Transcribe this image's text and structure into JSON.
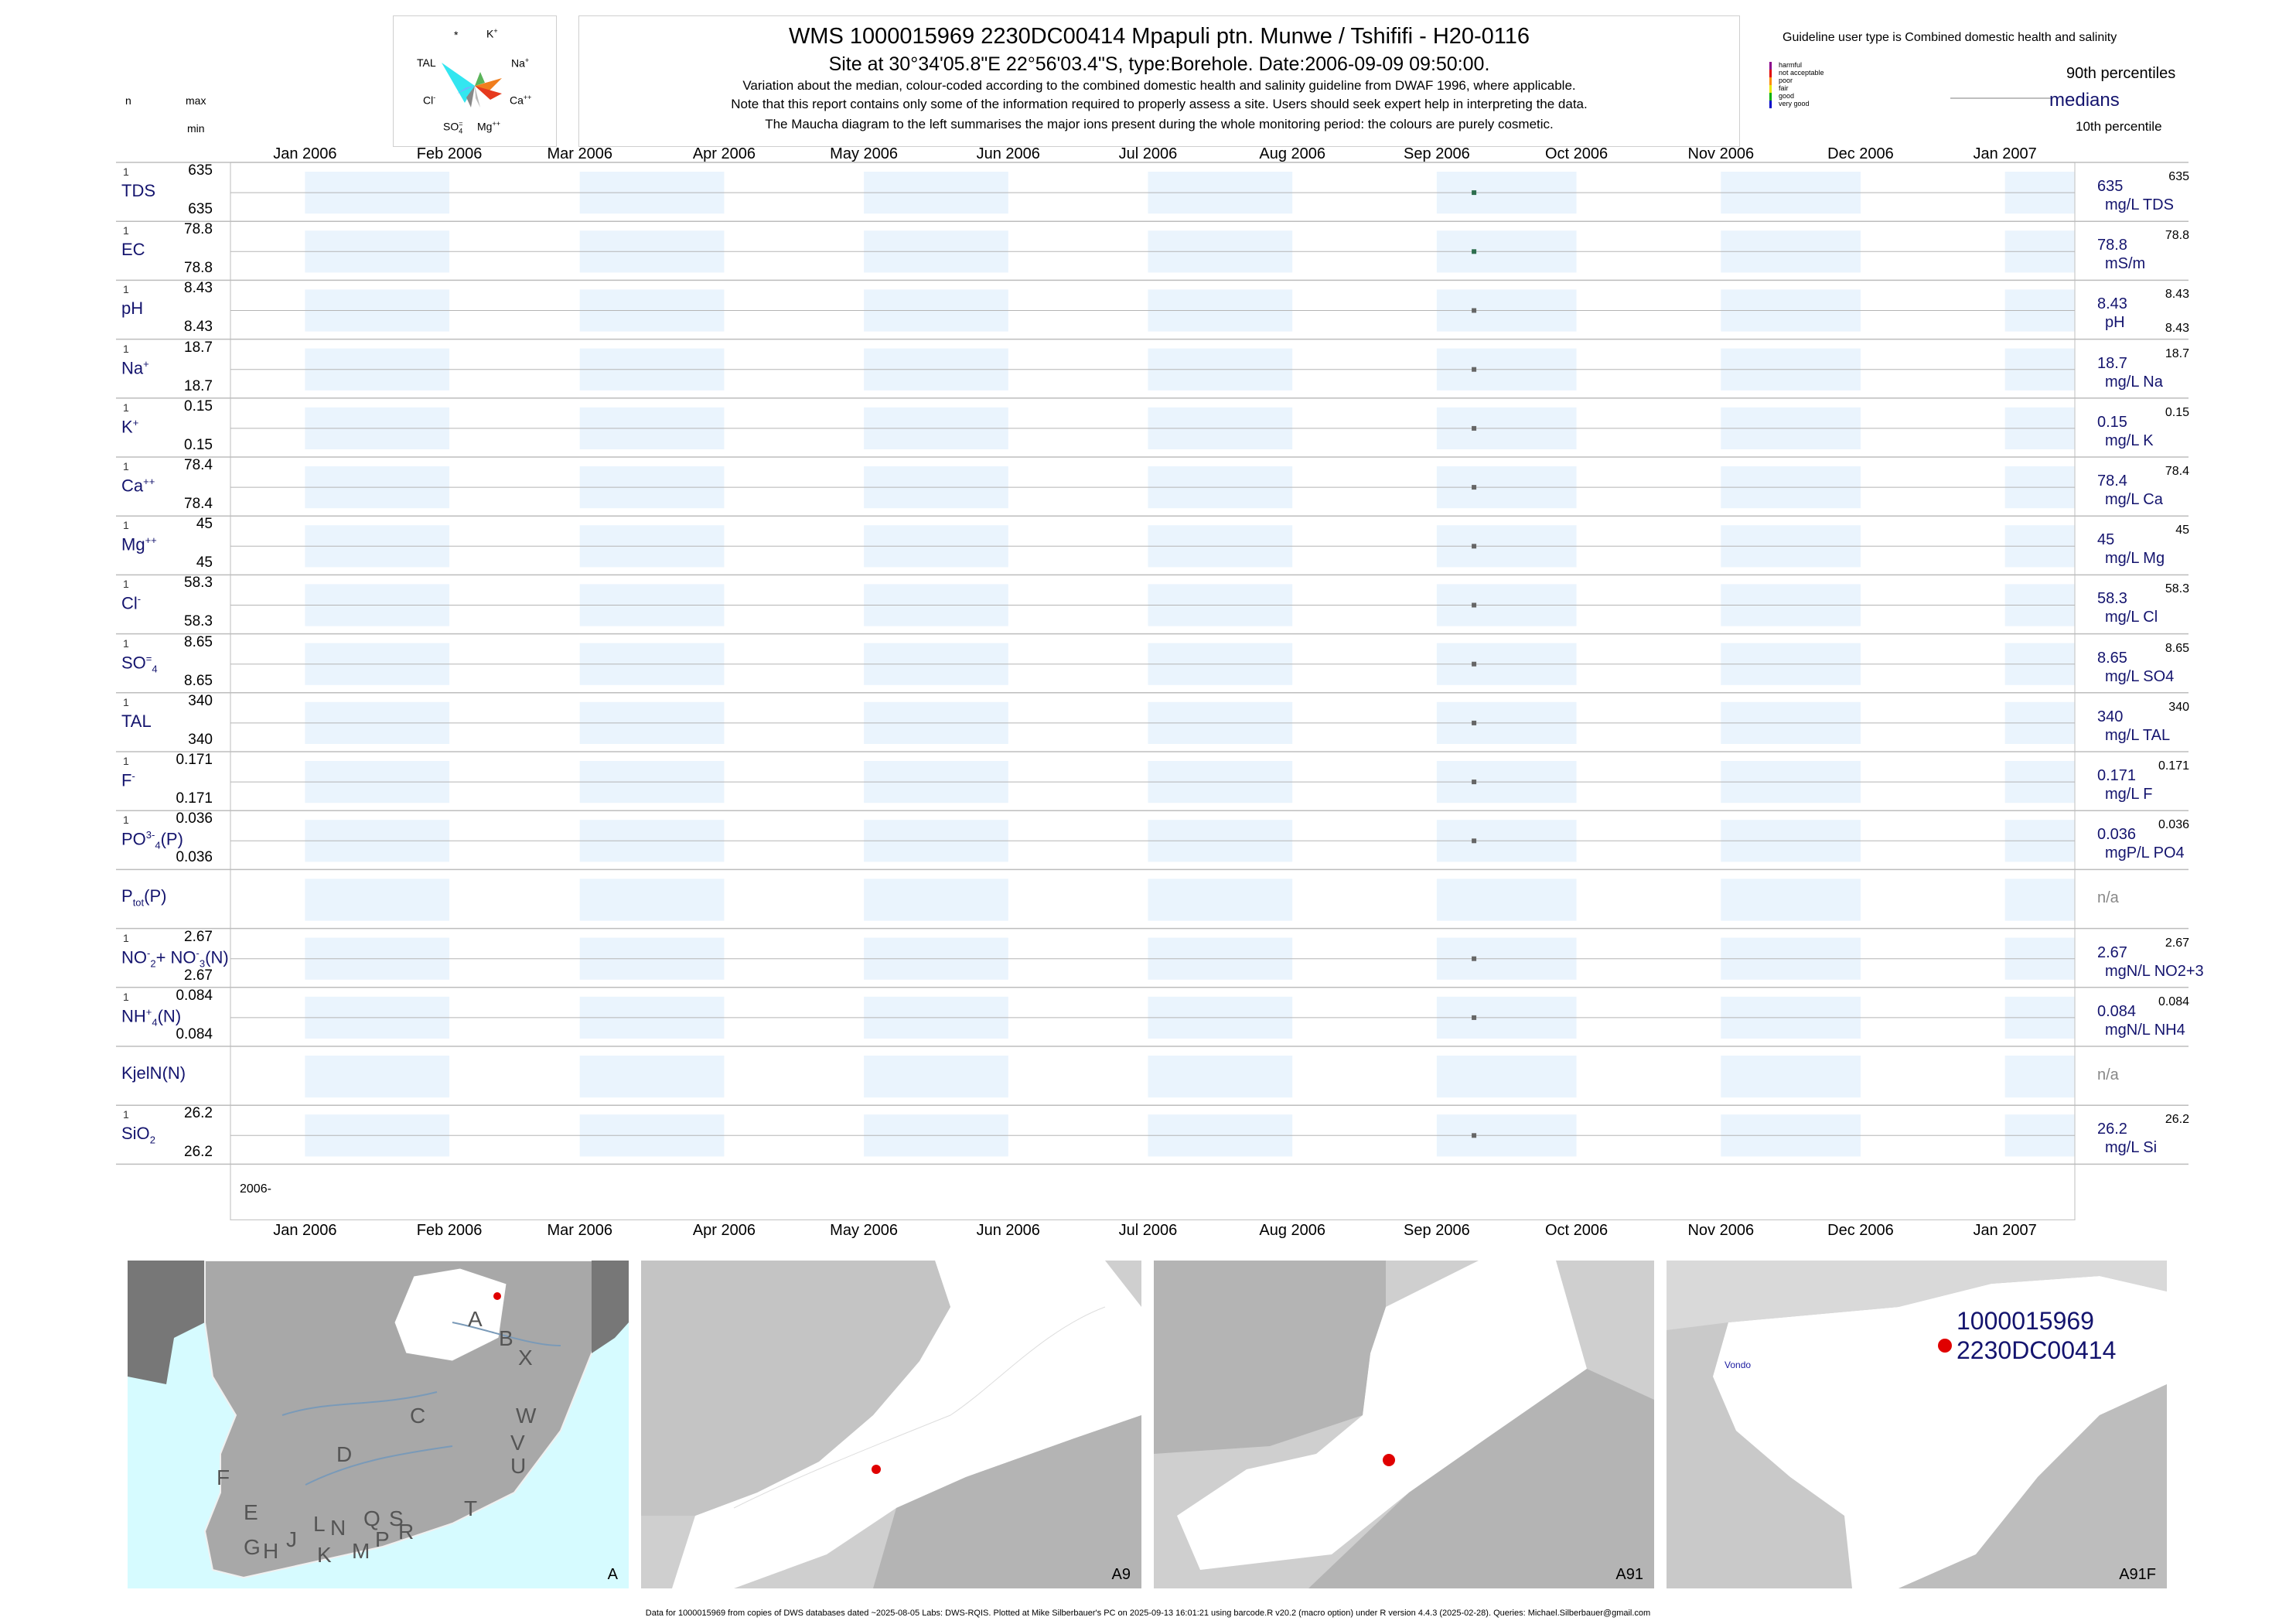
{
  "header": {
    "title": "WMS 1000015969 2230DC00414 Mpapuli ptn. Munwe / Tshififi - H20-0116",
    "subtitle": "Site at 30°34'05.8\"E 22°56'03.4\"S, type:Borehole. Date:2006-09-09 09:50:00.",
    "desc1": "Variation about the median,  colour-coded according to the combined domestic health and salinity guideline from DWAF 1996, where applicable.",
    "desc2": "Note that this report contains only some of the information required to properly assess a site. Users should seek expert help in interpreting the data.",
    "desc3": "The Maucha diagram to the left summarises the major ions present during the whole monitoring period: the colours are purely cosmetic."
  },
  "maucha": {
    "star": "*",
    "k": "K",
    "k_sup": "+",
    "tal": "TAL",
    "na": "Na",
    "na_sup": "+",
    "cl": "Cl",
    "cl_sup": "-",
    "ca": "Ca",
    "ca_sup": "++",
    "so4": "SO",
    "so4_sub": "4",
    "so4_sup": "=",
    "mg": "Mg",
    "mg_sup": "++",
    "colors": {
      "tal": "#33e6f0",
      "na": "#f07e1e",
      "ca": "#e63a1e",
      "k": "#5ab45a",
      "so4": "#888888",
      "mg": "#bbbbbb",
      "cl": "#6cb4ff"
    }
  },
  "columns": {
    "n": "n",
    "max": "max",
    "min": "min"
  },
  "legend": {
    "title": "Guideline user type is Combined domestic health and salinity",
    "classes": [
      {
        "label": "harmful",
        "color": "#8b008b"
      },
      {
        "label": "not acceptable",
        "color": "#e00000"
      },
      {
        "label": "poor",
        "color": "#ff8c00"
      },
      {
        "label": "fair",
        "color": "#e6e600"
      },
      {
        "label": "good",
        "color": "#00b000"
      },
      {
        "label": "very good",
        "color": "#0000c8"
      }
    ],
    "p90": "90th percentiles",
    "medians": "medians",
    "p10": "10th percentile"
  },
  "chart_data": {
    "type": "scatter",
    "x_axis": {
      "ticks": [
        "Jan 2006",
        "Feb 2006",
        "Mar 2006",
        "Apr 2006",
        "May 2006",
        "Jun 2006",
        "Jul 2006",
        "Aug 2006",
        "Sep 2006",
        "Oct 2006",
        "Nov 2006",
        "Dec 2006",
        "Jan 2007"
      ],
      "range": [
        "2005-12-16",
        "2007-01-16"
      ],
      "year_label": "2006-"
    },
    "sample_date": "2006-09-09",
    "series": [
      {
        "name": "TDS",
        "n": "1",
        "max": "635",
        "min": "635",
        "median": "635",
        "unit": "mg/L TDS",
        "p90": "635",
        "p10": "",
        "color": "#2e6e4e"
      },
      {
        "name": "EC",
        "n": "1",
        "max": "78.8",
        "min": "78.8",
        "median": "78.8",
        "unit": "mS/m",
        "p90": "78.8",
        "p10": "",
        "color": "#2e6e4e"
      },
      {
        "name": "pH",
        "n": "1",
        "max": "8.43",
        "min": "8.43",
        "median": "8.43",
        "unit": "pH",
        "p90": "8.43",
        "p10": "8.43",
        "color": "#666666"
      },
      {
        "name": "Na",
        "sup": "+",
        "n": "1",
        "max": "18.7",
        "min": "18.7",
        "median": "18.7",
        "unit": "mg/L Na",
        "p90": "18.7",
        "p10": "",
        "color": "#666666"
      },
      {
        "name": "K",
        "sup": "+",
        "n": "1",
        "max": "0.15",
        "min": "0.15",
        "median": "0.15",
        "unit": "mg/L K",
        "p90": "0.15",
        "p10": "",
        "color": "#666666"
      },
      {
        "name": "Ca",
        "sup": "++",
        "n": "1",
        "max": "78.4",
        "min": "78.4",
        "median": "78.4",
        "unit": "mg/L Ca",
        "p90": "78.4",
        "p10": "",
        "color": "#666666"
      },
      {
        "name": "Mg",
        "sup": "++",
        "n": "1",
        "max": "45",
        "min": "45",
        "median": "45",
        "unit": "mg/L Mg",
        "p90": "45",
        "p10": "",
        "color": "#666666"
      },
      {
        "name": "Cl",
        "sup": "-",
        "n": "1",
        "max": "58.3",
        "min": "58.3",
        "median": "58.3",
        "unit": "mg/L Cl",
        "p90": "58.3",
        "p10": "",
        "color": "#666666"
      },
      {
        "name": "SO",
        "sub": "4",
        "sup": "=",
        "n": "1",
        "max": "8.65",
        "min": "8.65",
        "median": "8.65",
        "unit": "mg/L SO4",
        "p90": "8.65",
        "p10": "",
        "color": "#666666"
      },
      {
        "name": "TAL",
        "n": "1",
        "max": "340",
        "min": "340",
        "median": "340",
        "unit": "mg/L TAL",
        "p90": "340",
        "p10": "",
        "color": "#666666"
      },
      {
        "name": "F",
        "sup": "-",
        "n": "1",
        "max": "0.171",
        "min": "0.171",
        "median": "0.171",
        "unit": "mg/L F",
        "p90": "0.171",
        "p10": "",
        "color": "#666666"
      },
      {
        "name": "PO",
        "sub": "4",
        "sup": "3-",
        "suffix": "(P)",
        "n": "1",
        "max": "0.036",
        "min": "0.036",
        "median": "0.036",
        "unit": "mgP/L PO4",
        "p90": "0.036",
        "p10": "",
        "color": "#666666"
      },
      {
        "name": "P",
        "sub": "tot",
        "suffix": "(P)",
        "n": "",
        "max": "",
        "min": "",
        "median": "",
        "unit": "",
        "p90": "",
        "p10": "",
        "na": "n/a"
      },
      {
        "name": "NO",
        "sub": "2",
        "sup": "-",
        "suffix": "+ NO",
        "sub2": "3",
        "sup2": "-",
        "suffix2": "(N)",
        "n": "1",
        "max": "2.67",
        "min": "2.67",
        "median": "2.67",
        "unit": "mgN/L NO2+3",
        "p90": "2.67",
        "p10": "",
        "color": "#666666"
      },
      {
        "name": "NH",
        "sub": "4",
        "sup": "+",
        "suffix": "(N)",
        "n": "1",
        "max": "0.084",
        "min": "0.084",
        "median": "0.084",
        "unit": "mgN/L NH4",
        "p90": "0.084",
        "p10": "",
        "color": "#666666"
      },
      {
        "name": "KjelN(N)",
        "n": "",
        "max": "",
        "min": "",
        "median": "",
        "unit": "",
        "p90": "",
        "p10": "",
        "na": "n/a"
      },
      {
        "name": "SiO",
        "sub": "2",
        "n": "1",
        "max": "26.2",
        "min": "26.2",
        "median": "26.2",
        "unit": "mg/L Si",
        "p90": "26.2",
        "p10": "",
        "color": "#666666"
      }
    ]
  },
  "maps": {
    "a": {
      "label": "A",
      "regions": [
        "A",
        "B",
        "X",
        "C",
        "W",
        "V",
        "U",
        "D",
        "F",
        "E",
        "T",
        "G",
        "H",
        "J",
        "K",
        "L",
        "N",
        "M",
        "Q",
        "P",
        "S",
        "R"
      ]
    },
    "a9": {
      "label": "A9"
    },
    "a91": {
      "label": "A91"
    },
    "a91f": {
      "label": "A91F",
      "site_id": "1000015969",
      "site_code": "2230DC00414",
      "place": "Vondo"
    },
    "site_color": "#e00000"
  },
  "footer": "Data for 1000015969 from copies of DWS databases dated ~2025-08-05 Labs: DWS-RQIS. Plotted at Mike Silberbauer's PC on 2025-09-13 16:01:21 using barcode.R v20.2 (macro option) under R version 4.4.3 (2025-02-28). Queries: Michael.Silberbauer@gmail.com"
}
